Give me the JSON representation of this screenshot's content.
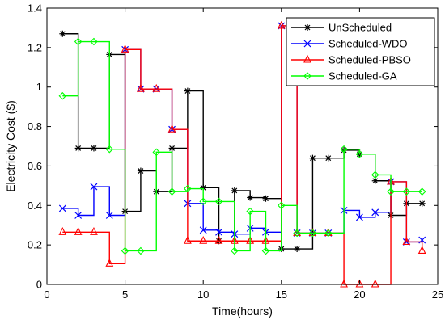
{
  "chart_data": {
    "type": "line",
    "step": "post",
    "xlabel": "Time(hours)",
    "ylabel": "Electricity Cost ($)",
    "xlim": [
      0,
      25
    ],
    "ylim": [
      0,
      1.4
    ],
    "xticks": [
      "0",
      "5",
      "10",
      "15",
      "20",
      "25"
    ],
    "yticks": [
      "0",
      "0.2",
      "0.4",
      "0.6",
      "0.8",
      "1",
      "1.2",
      "1.4"
    ],
    "grid": false,
    "legend_position": "top-right",
    "x": [
      1,
      2,
      3,
      4,
      5,
      6,
      7,
      8,
      9,
      10,
      11,
      12,
      13,
      14,
      15,
      16,
      17,
      18,
      19,
      20,
      21,
      22,
      23,
      24
    ],
    "series": [
      {
        "name": "UnScheduled",
        "color": "#000000",
        "marker": "asterisk",
        "values": [
          1.27,
          0.69,
          0.69,
          1.165,
          0.37,
          0.575,
          0.47,
          0.69,
          0.98,
          0.49,
          0.22,
          0.475,
          0.44,
          0.435,
          0.18,
          0.18,
          0.64,
          0.64,
          0.68,
          0.66,
          0.525,
          0.35,
          0.41,
          0.41
        ]
      },
      {
        "name": "Scheduled-WDO",
        "color": "#0000ff",
        "marker": "x",
        "values": [
          0.385,
          0.35,
          0.495,
          0.35,
          1.19,
          0.99,
          0.99,
          0.785,
          0.41,
          0.275,
          0.265,
          0.255,
          0.285,
          0.265,
          1.31,
          0.26,
          0.26,
          0.26,
          0.375,
          0.34,
          0.365,
          0.52,
          0.215,
          0.225
        ]
      },
      {
        "name": "Scheduled-PBSO",
        "color": "#ff0000",
        "marker": "triangle",
        "values": [
          0.265,
          0.265,
          0.265,
          0.105,
          1.19,
          0.99,
          0.99,
          0.785,
          0.22,
          0.22,
          0.22,
          0.22,
          0.22,
          0.22,
          1.31,
          0.26,
          0.26,
          0.26,
          0.0,
          0.0,
          0.0,
          0.52,
          0.215,
          0.17
        ]
      },
      {
        "name": "Scheduled-GA",
        "color": "#00ff00",
        "marker": "diamond",
        "values": [
          0.955,
          1.23,
          1.23,
          0.685,
          0.17,
          0.17,
          0.67,
          0.47,
          0.485,
          0.42,
          0.42,
          0.17,
          0.37,
          0.17,
          0.4,
          0.26,
          0.26,
          0.26,
          0.685,
          0.66,
          0.555,
          0.47,
          0.47,
          0.47
        ]
      }
    ]
  }
}
